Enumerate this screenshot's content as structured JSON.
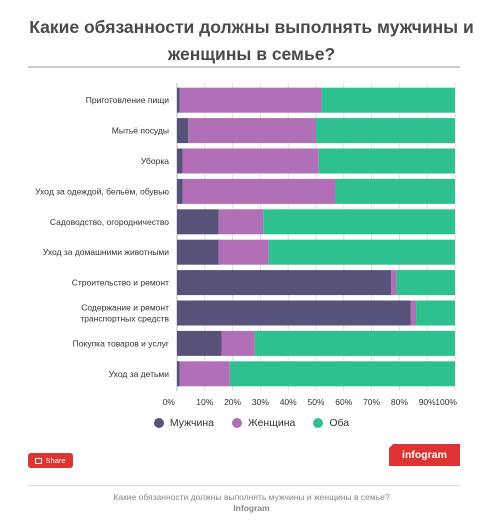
{
  "colors": {
    "men": "#575279",
    "women": "#b16fb8",
    "both": "#2ec08f",
    "grid": "#dcdcdc",
    "brand": "#dd3333"
  },
  "share": {
    "label": "Share",
    "icon": "share-icon"
  },
  "brand": {
    "logo_text": "infogram"
  },
  "footer": {
    "title": "Какие обязанности должны выполнять мужчины и женщины в семье?",
    "brand": "Infogram"
  },
  "chart_data": {
    "type": "bar",
    "orientation": "horizontal",
    "stacked": true,
    "title": "Какие обязанности должны выполнять мужчины и женщины в семье?",
    "xlabel": "",
    "ylabel": "",
    "xlim": [
      0,
      100
    ],
    "xticks": [
      "0%",
      "10%",
      "20%",
      "30%",
      "40%",
      "50%",
      "60%",
      "70%",
      "80%",
      "90%",
      "100%"
    ],
    "grid": true,
    "legend_position": "bottom",
    "categories": [
      "Приготовление пищи",
      "Мытьё посуды",
      "Уборка",
      "Уход за одеждой, бельём, обувью",
      "Садоводство, огородничество",
      "Уход за домашними животными",
      "Строительство и ремонт",
      "Содержание и ремонт транспортных средств",
      "Покупка товаров и услуг",
      "Уход за детьми"
    ],
    "category_lines": [
      [
        "Приготовление пищи"
      ],
      [
        "Мытьё посуды"
      ],
      [
        "Уборка"
      ],
      [
        "Уход за одеждой, бельём, обувью"
      ],
      [
        "Садоводство, огородничество"
      ],
      [
        "Уход за домашними животными"
      ],
      [
        "Строительство и ремонт"
      ],
      [
        "Содержание и ремонт",
        "транспортных средств"
      ],
      [
        "Покупка товаров и услуг"
      ],
      [
        "Уход за детьми"
      ]
    ],
    "series": [
      {
        "name": "Мужчина",
        "color": "#575279",
        "values": [
          1,
          4,
          2,
          2,
          15,
          15,
          77,
          84,
          16,
          1
        ]
      },
      {
        "name": "Женщина",
        "color": "#b16fb8",
        "values": [
          51,
          46,
          49,
          55,
          16,
          18,
          2,
          2,
          12,
          18
        ]
      },
      {
        "name": "Оба",
        "color": "#2ec08f",
        "values": [
          48,
          50,
          49,
          43,
          69,
          67,
          21,
          14,
          72,
          81
        ]
      }
    ]
  }
}
